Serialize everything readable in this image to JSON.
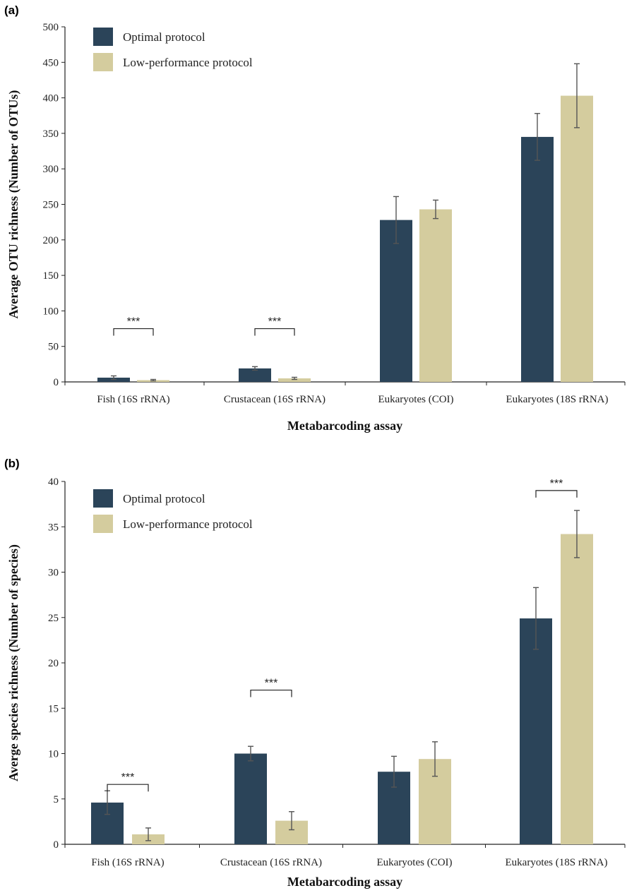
{
  "colors": {
    "optimal": "#2b4459",
    "low": "#d4cc9e",
    "error": "#555555",
    "axis": "#222222"
  },
  "chart_data": [
    {
      "panel_label": "(a)",
      "type": "bar",
      "categories": [
        "Fish (16S rRNA)",
        "Crustacean (16S rRNA)",
        "Eukaryotes (COI)",
        "Eukaryotes (18S rRNA)"
      ],
      "series": [
        {
          "name": "Optimal protocol",
          "values": [
            6,
            19,
            228,
            345
          ],
          "errors": [
            2.5,
            2.5,
            33,
            33
          ]
        },
        {
          "name": "Low-performance protocol",
          "values": [
            2.5,
            5,
            243,
            403
          ],
          "errors": [
            1,
            1.5,
            13,
            45
          ]
        }
      ],
      "ylim": [
        0,
        500
      ],
      "yticks": [
        0,
        50,
        100,
        150,
        200,
        250,
        300,
        350,
        400,
        450,
        500
      ],
      "xlabel": "Metabarcoding assay",
      "ylabel": "Average OTU richness (Number of OTUs)",
      "legend_position": "top-left",
      "significance": [
        {
          "category_index": 0,
          "label": "***",
          "y": 75
        },
        {
          "category_index": 1,
          "label": "***",
          "y": 75
        }
      ]
    },
    {
      "panel_label": "(b)",
      "type": "bar",
      "categories": [
        "Fish (16S rRNA)",
        "Crustacean (16S rRNA)",
        "Eukaryotes (COI)",
        "Eukaryotes (18S rRNA)"
      ],
      "series": [
        {
          "name": "Optimal protocol",
          "values": [
            4.6,
            10,
            8,
            24.9
          ],
          "errors": [
            1.3,
            0.8,
            1.7,
            3.4
          ]
        },
        {
          "name": "Low-performance protocol",
          "values": [
            1.1,
            2.6,
            9.4,
            34.2
          ],
          "errors": [
            0.7,
            1,
            1.9,
            2.6
          ]
        }
      ],
      "ylim": [
        0,
        40
      ],
      "yticks": [
        0,
        5,
        10,
        15,
        20,
        25,
        30,
        35,
        40
      ],
      "xlabel": "Metabarcoding assay",
      "ylabel": "Averge species richness (Number of species)",
      "legend_position": "top-left",
      "significance": [
        {
          "category_index": 0,
          "label": "***",
          "y": 6.6
        },
        {
          "category_index": 1,
          "label": "***",
          "y": 17
        },
        {
          "category_index": 3,
          "label": "***",
          "y": 39
        }
      ]
    }
  ]
}
